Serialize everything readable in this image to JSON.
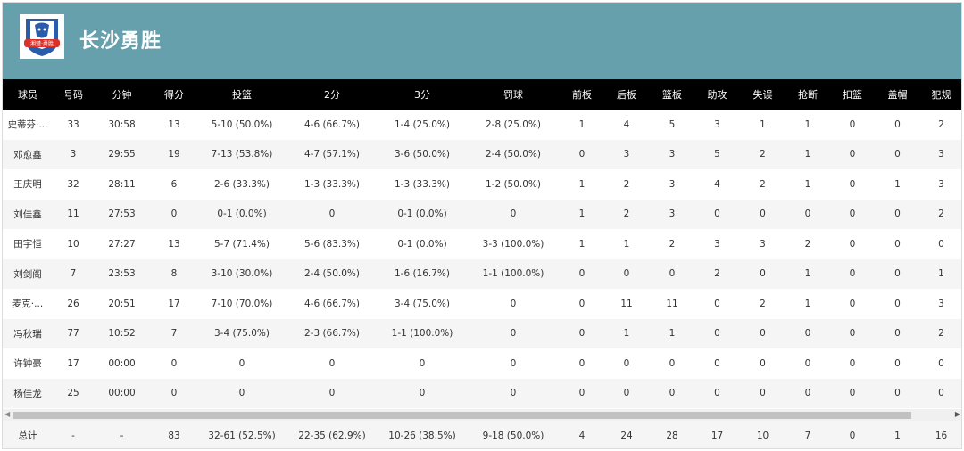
{
  "team": {
    "name": "长沙勇胜",
    "logo_text": "湘楚 勇胜",
    "colors": {
      "header_bg": "#66a0ad",
      "logo_blue": "#2a5caa",
      "logo_red": "#d8322b"
    }
  },
  "columns": [
    "球员",
    "号码",
    "分钟",
    "得分",
    "投篮",
    "2分",
    "3分",
    "罚球",
    "前板",
    "后板",
    "篮板",
    "助攻",
    "失误",
    "抢断",
    "扣篮",
    "盖帽",
    "犯规"
  ],
  "players": [
    {
      "name": "史蒂芬·...",
      "no": "33",
      "min": "30:58",
      "pts": "13",
      "fg": "5-10 (50.0%)",
      "two": "4-6 (66.7%)",
      "three": "1-4 (25.0%)",
      "ft": "2-8 (25.0%)",
      "oreb": "1",
      "dreb": "4",
      "reb": "5",
      "ast": "3",
      "to": "1",
      "stl": "1",
      "dunk": "0",
      "blk": "0",
      "pf": "2"
    },
    {
      "name": "邓愈鑫",
      "no": "3",
      "min": "29:55",
      "pts": "19",
      "fg": "7-13 (53.8%)",
      "two": "4-7 (57.1%)",
      "three": "3-6 (50.0%)",
      "ft": "2-4 (50.0%)",
      "oreb": "0",
      "dreb": "3",
      "reb": "3",
      "ast": "5",
      "to": "2",
      "stl": "1",
      "dunk": "0",
      "blk": "0",
      "pf": "3"
    },
    {
      "name": "王庆明",
      "no": "32",
      "min": "28:11",
      "pts": "6",
      "fg": "2-6 (33.3%)",
      "two": "1-3 (33.3%)",
      "three": "1-3 (33.3%)",
      "ft": "1-2 (50.0%)",
      "oreb": "1",
      "dreb": "2",
      "reb": "3",
      "ast": "4",
      "to": "2",
      "stl": "1",
      "dunk": "0",
      "blk": "1",
      "pf": "3"
    },
    {
      "name": "刘佳鑫",
      "no": "11",
      "min": "27:53",
      "pts": "0",
      "fg": "0-1 (0.0%)",
      "two": "0",
      "three": "0-1 (0.0%)",
      "ft": "0",
      "oreb": "1",
      "dreb": "2",
      "reb": "3",
      "ast": "0",
      "to": "0",
      "stl": "0",
      "dunk": "0",
      "blk": "0",
      "pf": "2"
    },
    {
      "name": "田宇恒",
      "no": "10",
      "min": "27:27",
      "pts": "13",
      "fg": "5-7 (71.4%)",
      "two": "5-6 (83.3%)",
      "three": "0-1 (0.0%)",
      "ft": "3-3 (100.0%)",
      "oreb": "1",
      "dreb": "1",
      "reb": "2",
      "ast": "3",
      "to": "3",
      "stl": "2",
      "dunk": "0",
      "blk": "0",
      "pf": "0"
    },
    {
      "name": "刘剑阁",
      "no": "7",
      "min": "23:53",
      "pts": "8",
      "fg": "3-10 (30.0%)",
      "two": "2-4 (50.0%)",
      "three": "1-6 (16.7%)",
      "ft": "1-1 (100.0%)",
      "oreb": "0",
      "dreb": "0",
      "reb": "0",
      "ast": "2",
      "to": "0",
      "stl": "1",
      "dunk": "0",
      "blk": "0",
      "pf": "1"
    },
    {
      "name": "麦克·...",
      "no": "26",
      "min": "20:51",
      "pts": "17",
      "fg": "7-10 (70.0%)",
      "two": "4-6 (66.7%)",
      "three": "3-4 (75.0%)",
      "ft": "0",
      "oreb": "0",
      "dreb": "11",
      "reb": "11",
      "ast": "0",
      "to": "2",
      "stl": "1",
      "dunk": "0",
      "blk": "0",
      "pf": "3"
    },
    {
      "name": "冯秋瑞",
      "no": "77",
      "min": "10:52",
      "pts": "7",
      "fg": "3-4 (75.0%)",
      "two": "2-3 (66.7%)",
      "three": "1-1 (100.0%)",
      "ft": "0",
      "oreb": "0",
      "dreb": "1",
      "reb": "1",
      "ast": "0",
      "to": "0",
      "stl": "0",
      "dunk": "0",
      "blk": "0",
      "pf": "2"
    },
    {
      "name": "许钟豪",
      "no": "17",
      "min": "00:00",
      "pts": "0",
      "fg": "0",
      "two": "0",
      "three": "0",
      "ft": "0",
      "oreb": "0",
      "dreb": "0",
      "reb": "0",
      "ast": "0",
      "to": "0",
      "stl": "0",
      "dunk": "0",
      "blk": "0",
      "pf": "0"
    },
    {
      "name": "杨佳龙",
      "no": "25",
      "min": "00:00",
      "pts": "0",
      "fg": "0",
      "two": "0",
      "three": "0",
      "ft": "0",
      "oreb": "0",
      "dreb": "0",
      "reb": "0",
      "ast": "0",
      "to": "0",
      "stl": "0",
      "dunk": "0",
      "blk": "0",
      "pf": "0"
    }
  ],
  "totals": {
    "name": "总计",
    "no": "-",
    "min": "-",
    "pts": "83",
    "fg": "32-61 (52.5%)",
    "two": "22-35 (62.9%)",
    "three": "10-26 (38.5%)",
    "ft": "9-18 (50.0%)",
    "oreb": "4",
    "dreb": "24",
    "reb": "28",
    "ast": "17",
    "to": "10",
    "stl": "7",
    "dunk": "0",
    "blk": "1",
    "pf": "16"
  },
  "scrollbar": {
    "left_arrow": "◀",
    "right_arrow": "▶"
  }
}
